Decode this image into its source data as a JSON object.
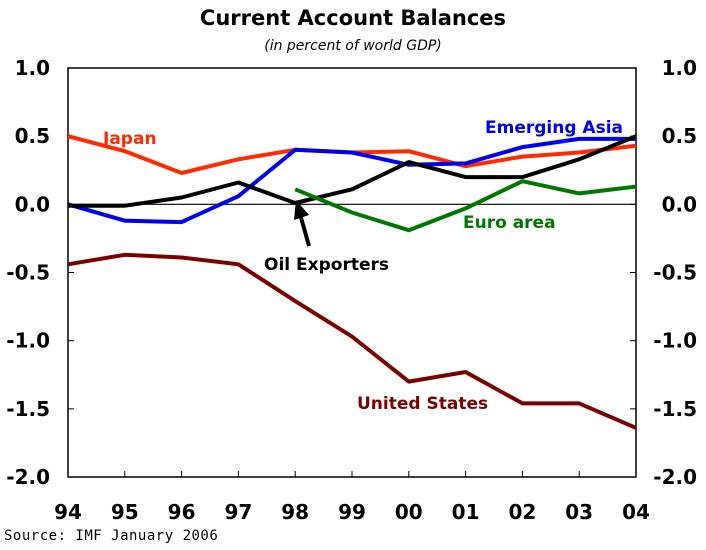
{
  "chart_data": {
    "type": "line",
    "title": "Current Account Balances",
    "subtitle": "(in percent of world GDP)",
    "source": "Source: IMF January 2006",
    "categories": [
      "94",
      "95",
      "96",
      "97",
      "98",
      "99",
      "00",
      "01",
      "02",
      "03",
      "04"
    ],
    "ylim": [
      -2.0,
      1.0
    ],
    "yticks": [
      "1.0",
      "0.5",
      "0.0",
      "-0.5",
      "-1.0",
      "-1.5",
      "-2.0"
    ],
    "ytick_values": [
      1.0,
      0.5,
      0.0,
      -0.5,
      -1.0,
      -1.5,
      -2.0
    ],
    "grid": false,
    "series": [
      {
        "name": "Japan",
        "color": "#ff2a00",
        "values": [
          0.5,
          0.39,
          0.23,
          0.33,
          0.4,
          0.38,
          0.39,
          0.28,
          0.35,
          0.38,
          0.43
        ]
      },
      {
        "name": "Emerging Asia",
        "color": "#0000ee",
        "values": [
          0.0,
          -0.12,
          -0.13,
          0.06,
          0.4,
          0.38,
          0.29,
          0.3,
          0.42,
          0.48,
          0.48
        ]
      },
      {
        "name": "Oil Exporters",
        "color": "#000000",
        "values": [
          -0.01,
          -0.01,
          0.05,
          0.16,
          0.01,
          0.11,
          0.31,
          0.2,
          0.2,
          0.33,
          0.5
        ]
      },
      {
        "name": "Euro area",
        "color": "#007700",
        "values": [
          null,
          null,
          null,
          null,
          0.11,
          -0.06,
          -0.19,
          -0.03,
          0.17,
          0.08,
          0.13
        ]
      },
      {
        "name": "United States",
        "color": "#7a0000",
        "values": [
          -0.44,
          -0.37,
          -0.39,
          -0.44,
          -0.71,
          -0.97,
          -1.3,
          -1.23,
          -1.46,
          -1.46,
          -1.64
        ]
      }
    ],
    "annotations": [
      {
        "text": "Oil Exporters",
        "points_to": {
          "x": "98",
          "y": 0.01
        }
      }
    ]
  }
}
